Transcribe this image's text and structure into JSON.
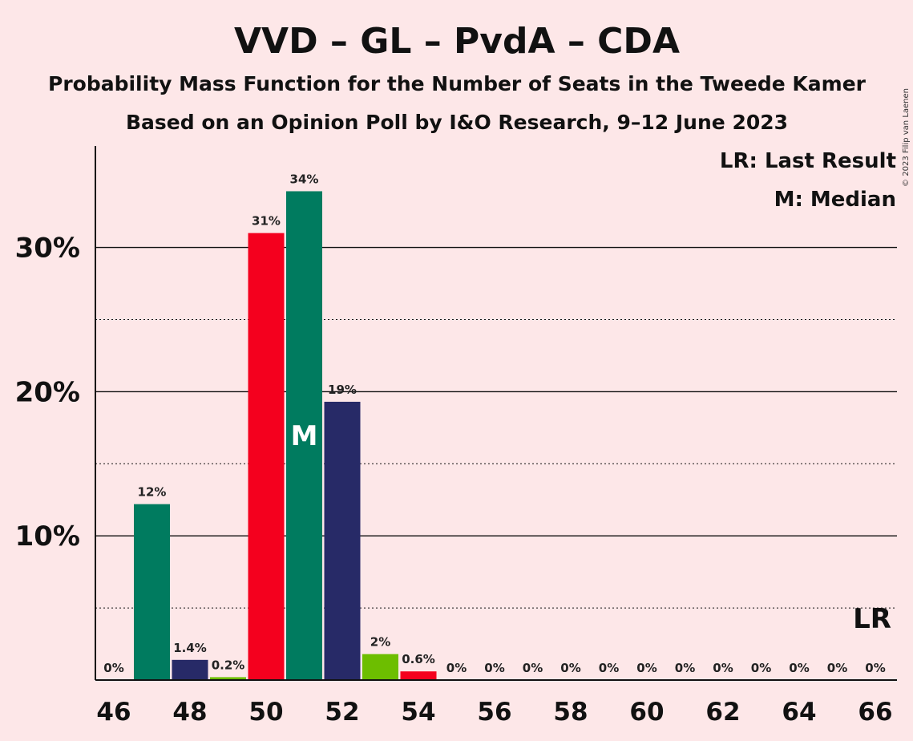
{
  "chart_data": {
    "type": "bar",
    "title": "VVD – GL – PvdA – CDA",
    "subtitle": "Probability Mass Function for the Number of Seats in the Tweede Kamer",
    "subtitle2": "Based on an Opinion Poll by I&O Research, 9–12 June 2023",
    "copyright": "© 2023 Filip van Laenen",
    "legend": {
      "lr": "LR: Last Result",
      "m": "M: Median",
      "placement": "top-right"
    },
    "median_marker": "M",
    "median_seat": 51,
    "last_result_marker": "LR",
    "last_result_seat": 66,
    "xlabel": "",
    "ylabel": "",
    "xlim": [
      46,
      66
    ],
    "ylim": [
      0,
      37
    ],
    "yticks": [
      {
        "value": 10,
        "label": "10%"
      },
      {
        "value": 20,
        "label": "20%"
      },
      {
        "value": 30,
        "label": "30%"
      }
    ],
    "ygrid_dotted": [
      5,
      15,
      25
    ],
    "xtick_labels": [
      "46",
      "48",
      "50",
      "52",
      "54",
      "56",
      "58",
      "60",
      "62",
      "64",
      "66"
    ],
    "colors": {
      "VVD": "#f4001e",
      "GL": "#007b5f",
      "PvdA": "#272a67",
      "CDA": "#6dbe00",
      "background": "#fde7e8"
    },
    "bars": [
      {
        "seats": 46,
        "value": 0,
        "label": "0%",
        "color": "#007b5f"
      },
      {
        "seats": 47,
        "value": 12.2,
        "label": "12%",
        "color": "#007b5f"
      },
      {
        "seats": 48,
        "value": 1.4,
        "label": "1.4%",
        "color": "#272a67"
      },
      {
        "seats": 49,
        "value": 0.2,
        "label": "0.2%",
        "color": "#6dbe00"
      },
      {
        "seats": 50,
        "value": 31,
        "label": "31%",
        "color": "#f4001e"
      },
      {
        "seats": 51,
        "value": 33.9,
        "label": "34%",
        "color": "#007b5f"
      },
      {
        "seats": 52,
        "value": 19.3,
        "label": "19%",
        "color": "#272a67"
      },
      {
        "seats": 53,
        "value": 1.8,
        "label": "2%",
        "color": "#6dbe00"
      },
      {
        "seats": 54,
        "value": 0.6,
        "label": "0.6%",
        "color": "#f4001e"
      },
      {
        "seats": 55,
        "value": 0,
        "label": "0%",
        "color": "#007b5f"
      },
      {
        "seats": 56,
        "value": 0,
        "label": "0%",
        "color": "#272a67"
      },
      {
        "seats": 57,
        "value": 0,
        "label": "0%",
        "color": "#6dbe00"
      },
      {
        "seats": 58,
        "value": 0,
        "label": "0%",
        "color": "#f4001e"
      },
      {
        "seats": 59,
        "value": 0,
        "label": "0%",
        "color": "#007b5f"
      },
      {
        "seats": 60,
        "value": 0,
        "label": "0%",
        "color": "#272a67"
      },
      {
        "seats": 61,
        "value": 0,
        "label": "0%",
        "color": "#6dbe00"
      },
      {
        "seats": 62,
        "value": 0,
        "label": "0%",
        "color": "#f4001e"
      },
      {
        "seats": 63,
        "value": 0,
        "label": "0%",
        "color": "#007b5f"
      },
      {
        "seats": 64,
        "value": 0,
        "label": "0%",
        "color": "#272a67"
      },
      {
        "seats": 65,
        "value": 0,
        "label": "0%",
        "color": "#6dbe00"
      },
      {
        "seats": 66,
        "value": 0,
        "label": "0%",
        "color": "#f4001e"
      }
    ]
  }
}
